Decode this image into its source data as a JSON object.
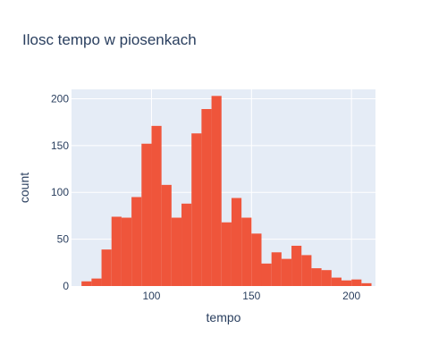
{
  "chart_data": {
    "type": "bar",
    "title": "Ilosc tempo w piosenkach",
    "xlabel": "tempo",
    "ylabel": "count",
    "xlim": [
      60,
      212
    ],
    "ylim": [
      0,
      210
    ],
    "xticks": [
      100,
      150,
      200
    ],
    "yticks": [
      0,
      50,
      100,
      150,
      200
    ],
    "grid": true,
    "bin_width": 5,
    "bins_start": [
      65,
      70,
      75,
      80,
      85,
      90,
      95,
      100,
      105,
      110,
      115,
      120,
      125,
      130,
      135,
      140,
      145,
      150,
      155,
      160,
      165,
      170,
      175,
      180,
      185,
      190,
      195,
      200,
      205,
      210
    ],
    "values": [
      5,
      8,
      39,
      74,
      73,
      95,
      152,
      171,
      108,
      73,
      88,
      163,
      189,
      203,
      68,
      94,
      73,
      56,
      24,
      36,
      29,
      43,
      33,
      19,
      17,
      9,
      6,
      7,
      3,
      0
    ],
    "bar_color": "#ef553b"
  },
  "colors": {
    "plot_bg": "#e5ecf6",
    "grid": "#ffffff",
    "text": "#2a3f5f"
  }
}
